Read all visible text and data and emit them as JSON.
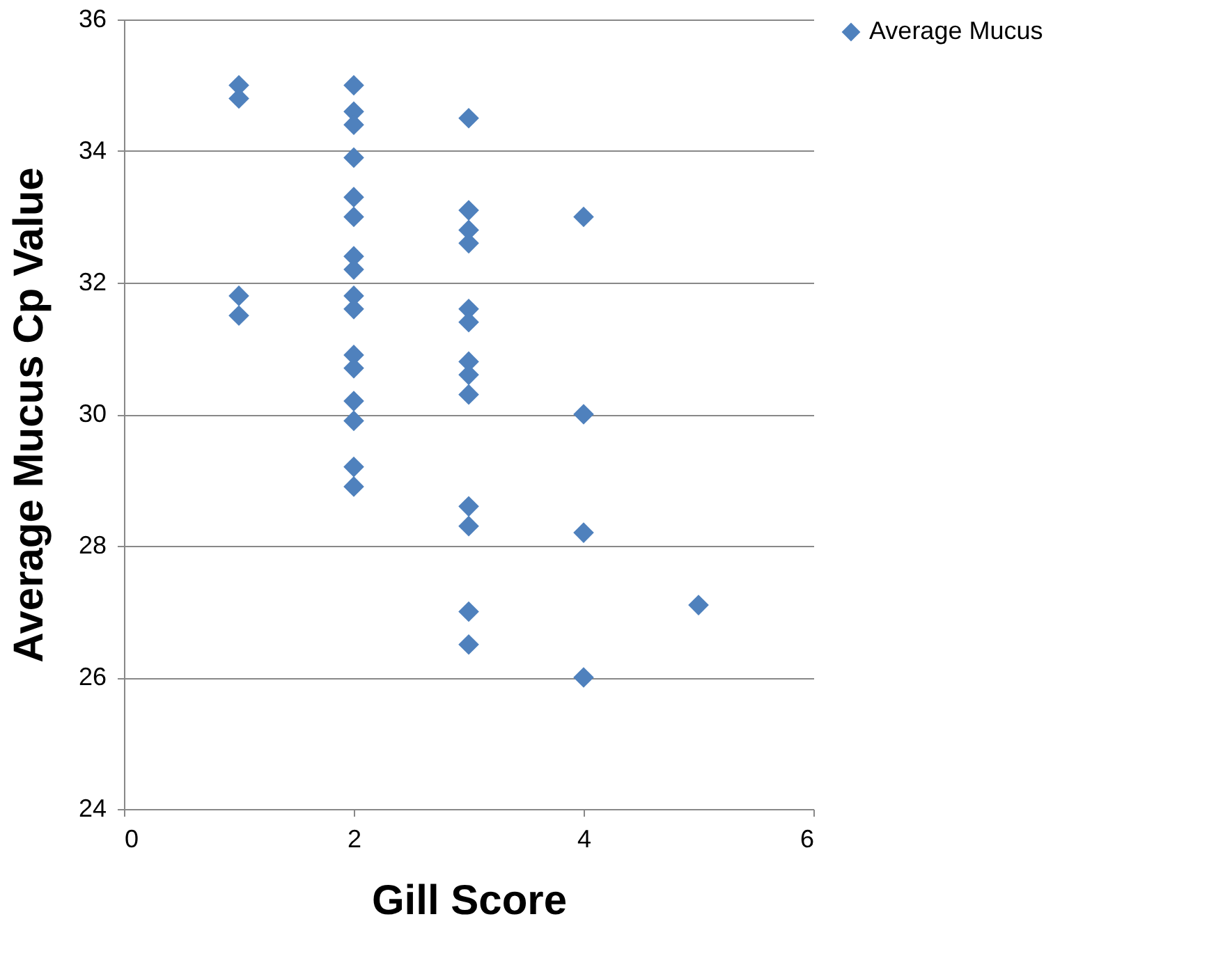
{
  "chart_data": {
    "type": "scatter",
    "xlabel": "Gill Score",
    "ylabel": "Average Mucus Cp Value",
    "x": [
      1,
      1,
      1,
      1,
      2,
      2,
      2,
      2,
      2,
      2,
      2,
      2,
      2,
      2,
      2,
      2,
      2,
      2,
      2,
      2,
      3,
      3,
      3,
      3,
      3,
      3,
      3,
      3,
      3,
      3,
      3,
      3,
      3,
      4,
      4,
      4,
      4,
      5
    ],
    "series": [
      {
        "name": "Average Mucus",
        "color": "#4f81bd",
        "values": [
          35.0,
          34.8,
          31.8,
          31.5,
          35.0,
          34.6,
          34.4,
          33.9,
          33.3,
          33.0,
          32.4,
          32.2,
          31.8,
          31.6,
          30.9,
          30.7,
          30.2,
          29.9,
          29.2,
          28.9,
          34.5,
          33.1,
          32.8,
          32.6,
          31.6,
          31.4,
          30.8,
          30.6,
          30.3,
          28.6,
          28.3,
          27.0,
          26.5,
          33.0,
          30.0,
          28.2,
          26.0,
          27.1
        ]
      }
    ],
    "xlim": [
      0,
      6
    ],
    "xticks": [
      0,
      2,
      4,
      6
    ],
    "ylim": [
      24,
      36
    ],
    "yticks": [
      24,
      26,
      28,
      30,
      32,
      34,
      36
    ],
    "grid": "y",
    "legend": "right",
    "marker": "diamond"
  }
}
